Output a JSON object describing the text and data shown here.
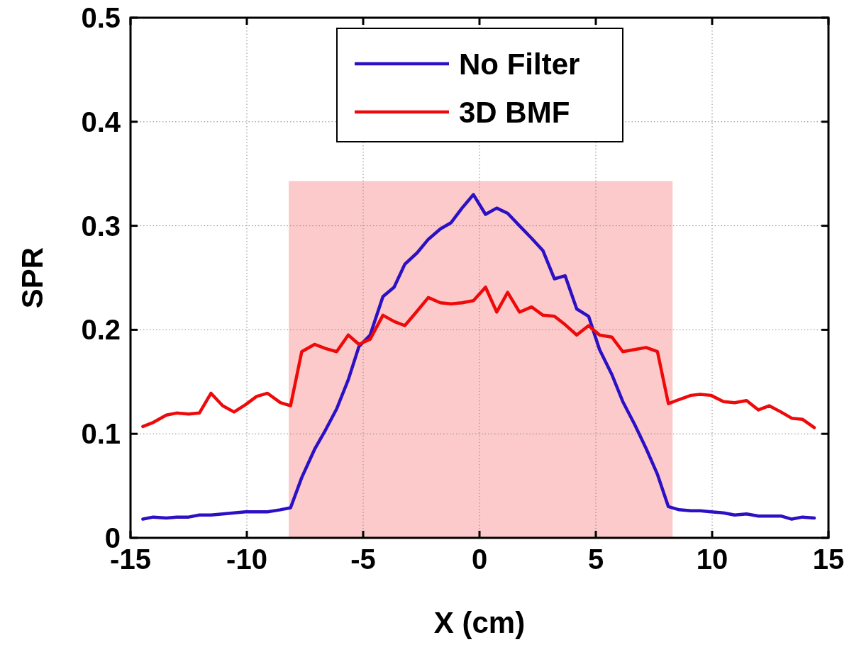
{
  "chart_data": {
    "type": "line",
    "xlabel": "X (cm)",
    "ylabel": "SPR",
    "x": [
      -14.47,
      -14.02,
      -13.46,
      -13.02,
      -12.5,
      -12.04,
      -11.54,
      -11.04,
      -10.55,
      -10.06,
      -9.58,
      -9.11,
      -8.56,
      -8.12,
      -7.64,
      -7.09,
      -6.61,
      -6.14,
      -5.64,
      -5.18,
      -4.7,
      -4.15,
      -3.67,
      -3.21,
      -2.68,
      -2.2,
      -1.68,
      -1.22,
      -0.75,
      -0.26,
      0.26,
      0.74,
      1.21,
      1.72,
      2.24,
      2.73,
      3.22,
      3.68,
      4.18,
      4.69,
      5.16,
      5.69,
      6.16,
      6.67,
      7.16,
      7.65,
      8.12,
      8.58,
      9.09,
      9.49,
      9.95,
      10.49,
      10.97,
      11.48,
      11.99,
      12.45,
      12.96,
      13.42,
      13.88,
      14.39
    ],
    "series": [
      {
        "type": "area",
        "color": "#fccaca",
        "x": [
          -8.2,
          8.3
        ],
        "values": [
          0.343,
          0.343
        ]
      },
      {
        "name": "No Filter",
        "color": "#2b10c4",
        "values": [
          0.018,
          0.02,
          0.019,
          0.02,
          0.02,
          0.022,
          0.022,
          0.023,
          0.024,
          0.025,
          0.025,
          0.025,
          0.027,
          0.029,
          0.058,
          0.085,
          0.104,
          0.124,
          0.152,
          0.184,
          0.195,
          0.232,
          0.241,
          0.263,
          0.274,
          0.287,
          0.297,
          0.303,
          0.317,
          0.33,
          0.311,
          0.317,
          0.312,
          0.3,
          0.288,
          0.276,
          0.249,
          0.252,
          0.22,
          0.213,
          0.181,
          0.157,
          0.131,
          0.109,
          0.086,
          0.061,
          0.03,
          0.027,
          0.026,
          0.026,
          0.025,
          0.024,
          0.022,
          0.023,
          0.021,
          0.021,
          0.021,
          0.018,
          0.02,
          0.019
        ]
      },
      {
        "name": "3D BMF",
        "color": "#ee0a0a",
        "values": [
          0.107,
          0.111,
          0.118,
          0.12,
          0.119,
          0.12,
          0.139,
          0.127,
          0.121,
          0.128,
          0.136,
          0.139,
          0.13,
          0.127,
          0.179,
          0.186,
          0.182,
          0.179,
          0.195,
          0.186,
          0.191,
          0.214,
          0.208,
          0.204,
          0.218,
          0.231,
          0.226,
          0.225,
          0.226,
          0.228,
          0.241,
          0.217,
          0.236,
          0.217,
          0.222,
          0.214,
          0.213,
          0.205,
          0.195,
          0.204,
          0.195,
          0.193,
          0.179,
          0.181,
          0.183,
          0.179,
          0.129,
          0.133,
          0.137,
          0.138,
          0.137,
          0.131,
          0.13,
          0.132,
          0.123,
          0.127,
          0.121,
          0.115,
          0.114,
          0.106
        ]
      }
    ],
    "xlim": [
      -15,
      15
    ],
    "xticks": [
      -15,
      -10,
      -5,
      0,
      5,
      10,
      15
    ],
    "ylim": [
      0,
      0.5
    ],
    "yticks": [
      0,
      0.1,
      0.2,
      0.3,
      0.4,
      0.5
    ],
    "grid": true,
    "legend": "top",
    "line_style": "solid",
    "marker": "none"
  }
}
